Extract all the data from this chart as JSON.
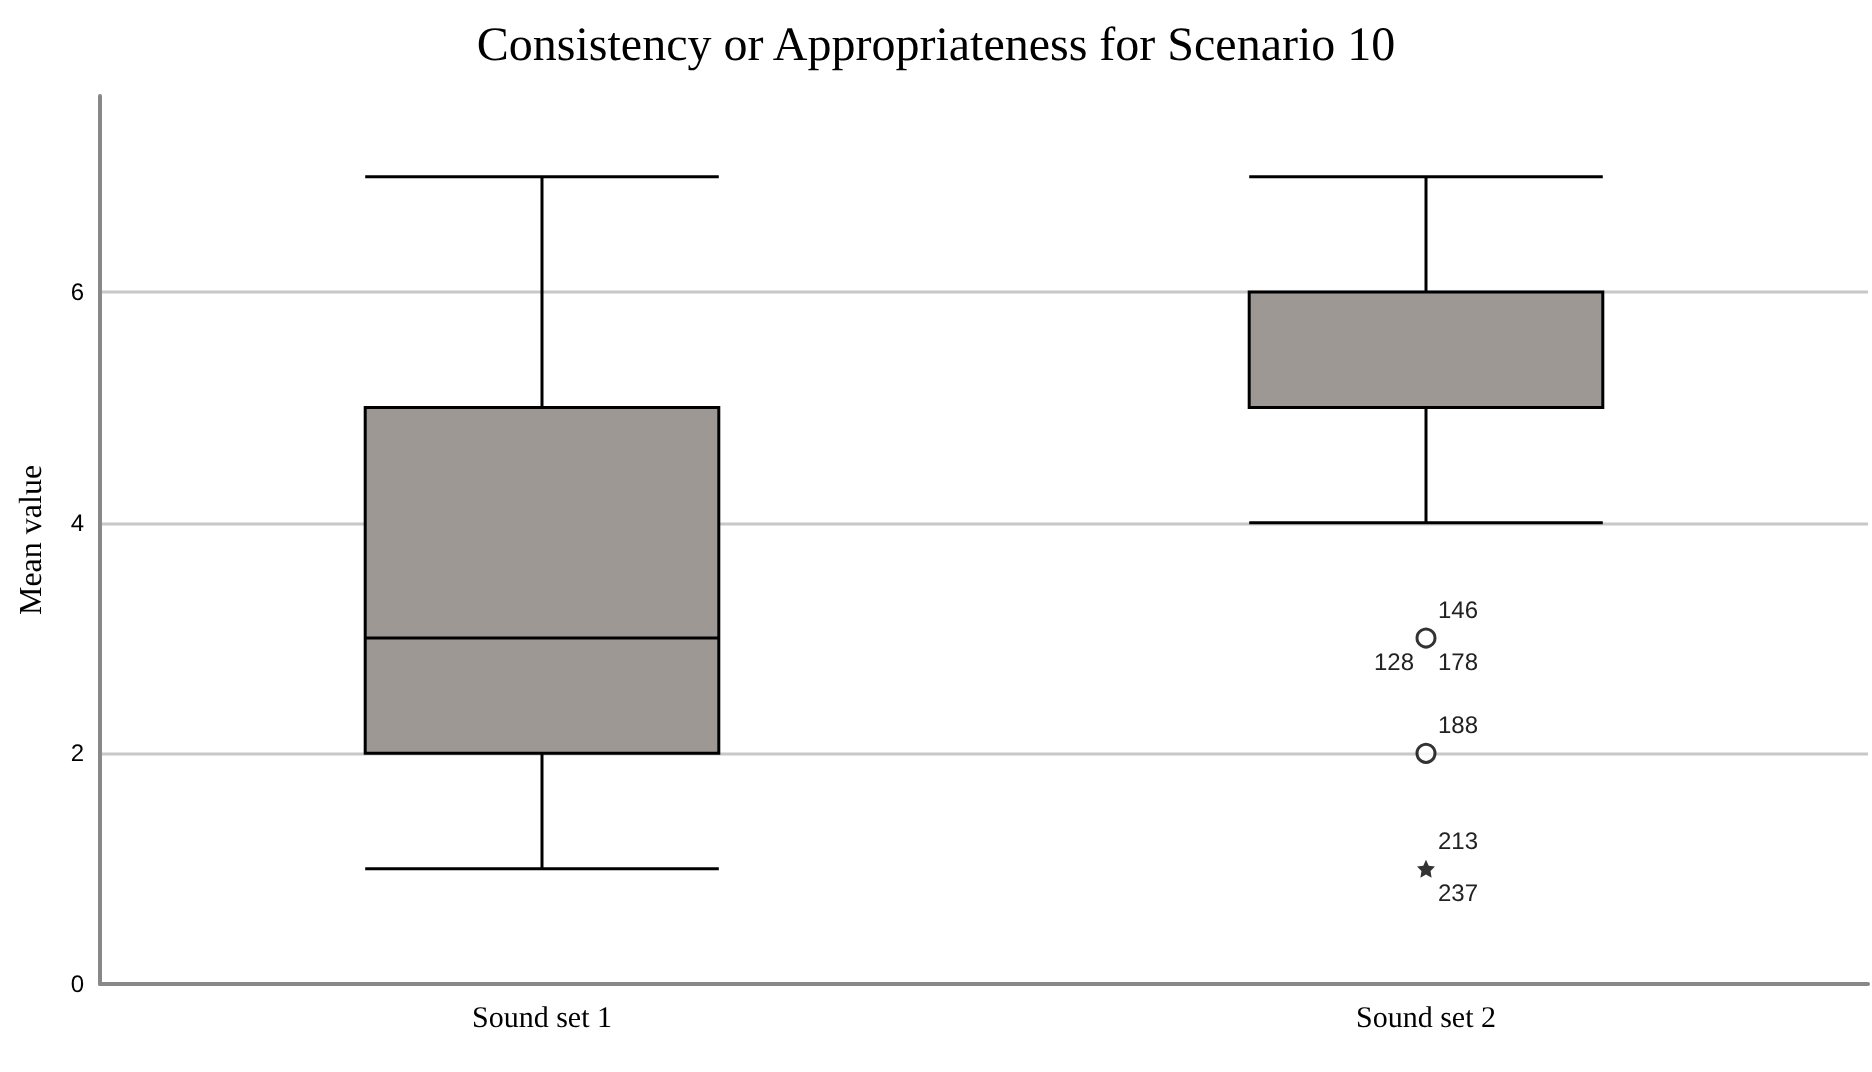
{
  "chart_data": {
    "type": "box",
    "title": "Consistency or Appropriateness for Scenario 10",
    "ylabel": "Mean value",
    "categories": [
      "Sound set 1",
      "Sound set 2"
    ],
    "boxes": [
      {
        "low": 1,
        "q1": 2,
        "median": 3,
        "q3": 5,
        "high": 7
      },
      {
        "low": 4,
        "q1": 5,
        "median": 5,
        "q3": 6,
        "high": 7
      }
    ],
    "color": "#9e9895",
    "series": [
      {
        "type": "scatter",
        "x": [
          "Sound set 2",
          "Sound set 2"
        ],
        "values": [
          3,
          2
        ],
        "marker": "circle",
        "color": "#000000"
      },
      {
        "type": "scatter",
        "x": [
          "Sound set 2"
        ],
        "values": [
          1
        ],
        "marker": "star",
        "color": "#000000"
      }
    ],
    "ylim": [
      0,
      7.7
    ],
    "yticks": [
      0,
      2,
      4,
      6
    ],
    "grid": "y",
    "annotations": [
      {
        "text": "146",
        "x": "Sound set 2",
        "y": 3
      },
      {
        "text": "178",
        "x": "Sound set 2",
        "y": 3
      },
      {
        "text": "128",
        "x": "Sound set 2",
        "y": 3
      },
      {
        "text": "188",
        "x": "Sound set 2",
        "y": 2
      },
      {
        "text": "213",
        "x": "Sound set 2",
        "y": 1
      },
      {
        "text": "237",
        "x": "Sound set 2",
        "y": 1
      }
    ]
  }
}
